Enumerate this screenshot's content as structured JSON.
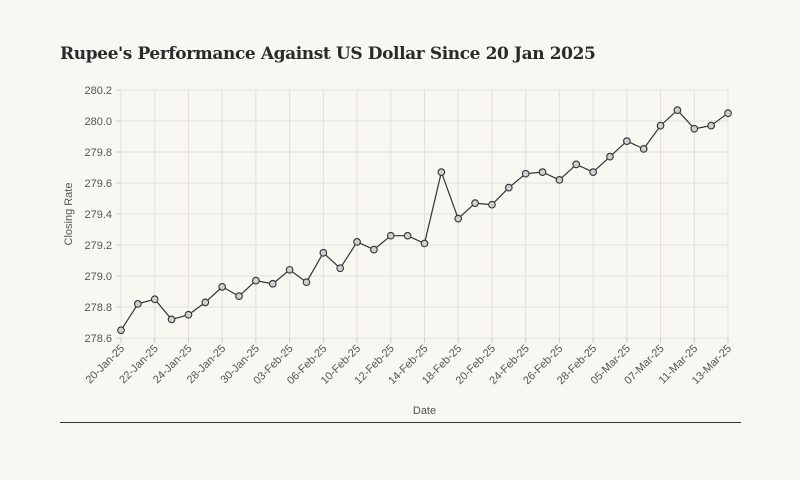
{
  "chart_data": {
    "type": "line",
    "title": "Rupee's Performance Against US Dollar Since 20 Jan 2025",
    "xlabel": "Date",
    "ylabel": "Closing Rate",
    "ylim": [
      278.6,
      280.2
    ],
    "yticks": [
      "278.6",
      "278.8",
      "279.0",
      "279.2",
      "279.4",
      "279.6",
      "279.8",
      "280.0",
      "280.2"
    ],
    "x": [
      "20-Jan-25",
      "21-Jan-25",
      "22-Jan-25",
      "23-Jan-25",
      "24-Jan-25",
      "27-Jan-25",
      "28-Jan-25",
      "29-Jan-25",
      "30-Jan-25",
      "31-Jan-25",
      "03-Feb-25",
      "04-Feb-25",
      "06-Feb-25",
      "07-Feb-25",
      "10-Feb-25",
      "11-Feb-25",
      "12-Feb-25",
      "13-Feb-25",
      "14-Feb-25",
      "17-Feb-25",
      "18-Feb-25",
      "19-Feb-25",
      "20-Feb-25",
      "21-Feb-25",
      "24-Feb-25",
      "25-Feb-25",
      "26-Feb-25",
      "27-Feb-25",
      "28-Feb-25",
      "03-Mar-25",
      "05-Mar-25",
      "06-Mar-25",
      "07-Mar-25",
      "10-Mar-25",
      "11-Mar-25",
      "12-Mar-25",
      "13-Mar-25"
    ],
    "xticks_shown": [
      "20-Jan-25",
      "22-Jan-25",
      "24-Jan-25",
      "28-Jan-25",
      "30-Jan-25",
      "03-Feb-25",
      "06-Feb-25",
      "10-Feb-25",
      "12-Feb-25",
      "14-Feb-25",
      "18-Feb-25",
      "20-Feb-25",
      "24-Feb-25",
      "26-Feb-25",
      "28-Feb-25",
      "05-Mar-25",
      "07-Mar-25",
      "11-Mar-25",
      "13-Mar-25"
    ],
    "series": [
      {
        "name": "Closing Rate",
        "color": "#333333",
        "values": [
          278.65,
          278.82,
          278.85,
          278.72,
          278.75,
          278.83,
          278.93,
          278.87,
          278.97,
          278.95,
          279.04,
          278.96,
          279.15,
          279.05,
          279.22,
          279.17,
          279.26,
          279.26,
          279.21,
          279.67,
          279.37,
          279.47,
          279.46,
          279.57,
          279.66,
          279.67,
          279.62,
          279.72,
          279.67,
          279.77,
          279.87,
          279.82,
          279.97,
          280.07,
          279.95,
          279.97,
          280.05
        ]
      }
    ]
  }
}
